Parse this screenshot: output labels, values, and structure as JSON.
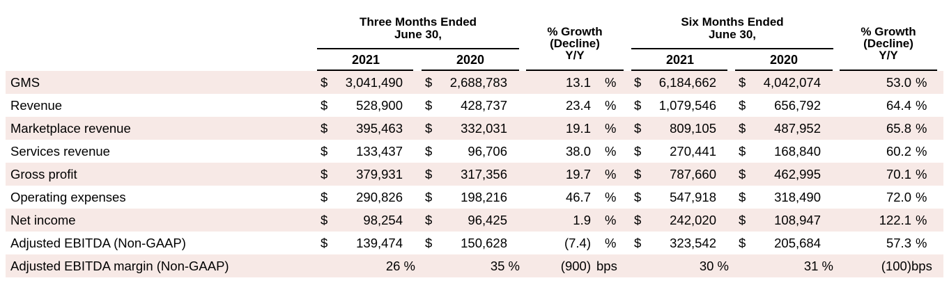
{
  "header": {
    "three_months": [
      "Three Months Ended",
      "June 30,"
    ],
    "six_months": [
      "Six Months Ended",
      "June 30,"
    ],
    "growth": [
      "% Growth",
      "(Decline)",
      "Y/Y"
    ],
    "years": [
      "2021",
      "2020"
    ]
  },
  "rows": [
    {
      "label": "GMS",
      "t21_cur": "$",
      "t21": "3,041,490",
      "t20_cur": "$",
      "t20": "2,688,783",
      "g3": "13.1",
      "g3_unit": "%",
      "s21_cur": "$",
      "s21": "6,184,662",
      "s20_cur": "$",
      "s20": "4,042,074",
      "g6": "53.0",
      "g6_unit": "%"
    },
    {
      "label": "Revenue",
      "t21_cur": "$",
      "t21": "528,900",
      "t20_cur": "$",
      "t20": "428,737",
      "g3": "23.4",
      "g3_unit": "%",
      "s21_cur": "$",
      "s21": "1,079,546",
      "s20_cur": "$",
      "s20": "656,792",
      "g6": "64.4",
      "g6_unit": "%"
    },
    {
      "label": "Marketplace revenue",
      "t21_cur": "$",
      "t21": "395,463",
      "t20_cur": "$",
      "t20": "332,031",
      "g3": "19.1",
      "g3_unit": "%",
      "s21_cur": "$",
      "s21": "809,105",
      "s20_cur": "$",
      "s20": "487,952",
      "g6": "65.8",
      "g6_unit": "%"
    },
    {
      "label": "Services revenue",
      "t21_cur": "$",
      "t21": "133,437",
      "t20_cur": "$",
      "t20": "96,706",
      "g3": "38.0",
      "g3_unit": "%",
      "s21_cur": "$",
      "s21": "270,441",
      "s20_cur": "$",
      "s20": "168,840",
      "g6": "60.2",
      "g6_unit": "%"
    },
    {
      "label": "Gross profit",
      "t21_cur": "$",
      "t21": "379,931",
      "t20_cur": "$",
      "t20": "317,356",
      "g3": "19.7",
      "g3_unit": "%",
      "s21_cur": "$",
      "s21": "787,660",
      "s20_cur": "$",
      "s20": "462,995",
      "g6": "70.1",
      "g6_unit": "%"
    },
    {
      "label": "Operating expenses",
      "t21_cur": "$",
      "t21": "290,826",
      "t20_cur": "$",
      "t20": "198,216",
      "g3": "46.7",
      "g3_unit": "%",
      "s21_cur": "$",
      "s21": "547,918",
      "s20_cur": "$",
      "s20": "318,490",
      "g6": "72.0",
      "g6_unit": "%"
    },
    {
      "label": "Net income",
      "t21_cur": "$",
      "t21": "98,254",
      "t20_cur": "$",
      "t20": "96,425",
      "g3": "1.9",
      "g3_unit": "%",
      "s21_cur": "$",
      "s21": "242,020",
      "s20_cur": "$",
      "s20": "108,947",
      "g6": "122.1",
      "g6_unit": "%"
    },
    {
      "label": "Adjusted EBITDA (Non-GAAP)",
      "t21_cur": "$",
      "t21": "139,474",
      "t20_cur": "$",
      "t20": "150,628",
      "g3": "(7.4)",
      "g3_unit": "%",
      "s21_cur": "$",
      "s21": "323,542",
      "s20_cur": "$",
      "s20": "205,684",
      "g6": "57.3",
      "g6_unit": "%"
    },
    {
      "label": "Adjusted EBITDA margin (Non-GAAP)",
      "t21_cur": "",
      "t21": "26 %",
      "t20_cur": "",
      "t20": "35 %",
      "g3": "(900)",
      "g3_unit": "bps",
      "s21_cur": "",
      "s21": "30 %",
      "s20_cur": "",
      "s20": "31 %",
      "g6": "(100)",
      "g6_unit": "bps"
    }
  ]
}
